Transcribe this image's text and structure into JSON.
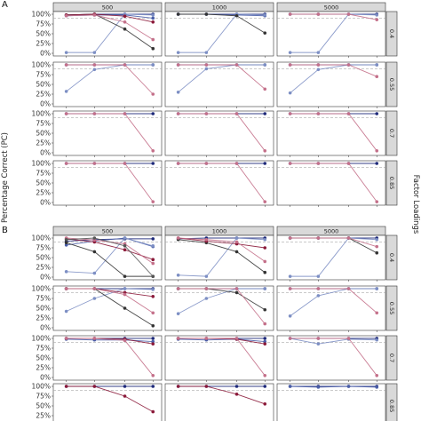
{
  "figure": {
    "y_axis_title": "Percentage Correct (PC)",
    "right_axis_title": "Factor Loadings",
    "panel_labels": [
      "A",
      "B"
    ]
  },
  "chart_data": {
    "type": "line",
    "facets": {
      "columns": [
        "500",
        "1000",
        "5000"
      ],
      "rows": [
        "0.4",
        "0.55",
        "0.7",
        "0.85"
      ]
    },
    "y_ticks": [
      "0%",
      "25%",
      "50%",
      "75%",
      "100%"
    ],
    "ylim": [
      0,
      100
    ],
    "reference_line": 90,
    "x": [
      1,
      2,
      3,
      4
    ],
    "grid": false,
    "legend": "none",
    "panels": [
      {
        "label": "A",
        "cells": [
          {
            "row": "0.4",
            "col": "500",
            "series": [
              {
                "color": "#1f2a7a",
                "values": [
                  98,
                  100,
                  100,
                  100
                ]
              },
              {
                "color": "#4a5ea8",
                "values": [
                  96,
                  98,
                  98,
                  90
                ]
              },
              {
                "color": "#7d8fc4",
                "values": [
                  2,
                  2,
                  100,
                  98
                ]
              },
              {
                "color": "#333333",
                "values": [
                  98,
                  100,
                  62,
                  12
                ]
              },
              {
                "color": "#8b1a3a",
                "values": [
                  98,
                  100,
                  95,
                  80
                ]
              },
              {
                "color": "#c4708a",
                "values": [
                  96,
                  98,
                  80,
                  35
                ]
              }
            ]
          },
          {
            "row": "0.4",
            "col": "1000",
            "series": [
              {
                "color": "#1f2a7a",
                "values": [
                  100,
                  100,
                  100,
                  100
                ]
              },
              {
                "color": "#4a5ea8",
                "values": [
                  100,
                  100,
                  98,
                  96
                ]
              },
              {
                "color": "#7d8fc4",
                "values": [
                  2,
                  2,
                  100,
                  98
                ]
              },
              {
                "color": "#333333",
                "values": [
                  100,
                  100,
                  96,
                  52
                ]
              }
            ]
          },
          {
            "row": "0.4",
            "col": "5000",
            "series": [
              {
                "color": "#1f2a7a",
                "values": [
                  100,
                  100,
                  100,
                  100
                ]
              },
              {
                "color": "#7d8fc4",
                "values": [
                  2,
                  2,
                  100,
                  98
                ]
              },
              {
                "color": "#c4708a",
                "values": [
                  100,
                  100,
                  100,
                  86
                ]
              }
            ]
          },
          {
            "row": "0.55",
            "col": "500",
            "series": [
              {
                "color": "#1f2a7a",
                "values": [
                  100,
                  100,
                  100,
                  100
                ]
              },
              {
                "color": "#7d8fc4",
                "values": [
                  32,
                  88,
                  100,
                  100
                ]
              },
              {
                "color": "#c4708a",
                "values": [
                  100,
                  100,
                  100,
                  25
                ]
              }
            ]
          },
          {
            "row": "0.55",
            "col": "1000",
            "series": [
              {
                "color": "#1f2a7a",
                "values": [
                  100,
                  100,
                  100,
                  100
                ]
              },
              {
                "color": "#7d8fc4",
                "values": [
                  30,
                  90,
                  100,
                  100
                ]
              },
              {
                "color": "#c4708a",
                "values": [
                  100,
                  100,
                  100,
                  38
                ]
              }
            ]
          },
          {
            "row": "0.55",
            "col": "5000",
            "series": [
              {
                "color": "#1f2a7a",
                "values": [
                  100,
                  100,
                  100,
                  100
                ]
              },
              {
                "color": "#7d8fc4",
                "values": [
                  28,
                  88,
                  100,
                  100
                ]
              },
              {
                "color": "#c4708a",
                "values": [
                  100,
                  100,
                  100,
                  70
                ]
              }
            ]
          },
          {
            "row": "0.7",
            "col": "500",
            "series": [
              {
                "color": "#1f2a7a",
                "values": [
                  100,
                  100,
                  100,
                  100
                ]
              },
              {
                "color": "#c4708a",
                "values": [
                  100,
                  100,
                  100,
                  5
                ]
              }
            ]
          },
          {
            "row": "0.7",
            "col": "1000",
            "series": [
              {
                "color": "#1f2a7a",
                "values": [
                  100,
                  100,
                  100,
                  100
                ]
              },
              {
                "color": "#c4708a",
                "values": [
                  100,
                  100,
                  100,
                  5
                ]
              }
            ]
          },
          {
            "row": "0.7",
            "col": "5000",
            "series": [
              {
                "color": "#1f2a7a",
                "values": [
                  100,
                  100,
                  100,
                  100
                ]
              },
              {
                "color": "#c4708a",
                "values": [
                  100,
                  100,
                  100,
                  5
                ]
              }
            ]
          },
          {
            "row": "0.85",
            "col": "500",
            "series": [
              {
                "color": "#1f2a7a",
                "values": [
                  100,
                  100,
                  100,
                  100
                ]
              },
              {
                "color": "#c4708a",
                "values": [
                  100,
                  100,
                  100,
                  2
                ]
              }
            ]
          },
          {
            "row": "0.85",
            "col": "1000",
            "series": [
              {
                "color": "#1f2a7a",
                "values": [
                  100,
                  100,
                  100,
                  100
                ]
              },
              {
                "color": "#c4708a",
                "values": [
                  100,
                  100,
                  100,
                  2
                ]
              }
            ]
          },
          {
            "row": "0.85",
            "col": "5000",
            "series": [
              {
                "color": "#1f2a7a",
                "values": [
                  100,
                  100,
                  100,
                  100
                ]
              },
              {
                "color": "#c4708a",
                "values": [
                  100,
                  100,
                  100,
                  2
                ]
              }
            ]
          }
        ]
      },
      {
        "label": "B",
        "cells": [
          {
            "row": "0.4",
            "col": "500",
            "series": [
              {
                "color": "#1f2a7a",
                "values": [
                  92,
                  96,
                  98,
                  98
                ]
              },
              {
                "color": "#4a5ea8",
                "values": [
                  82,
                  92,
                  100,
                  78
                ]
              },
              {
                "color": "#7d8fc4",
                "values": [
                  14,
                  10,
                  100,
                  80
                ]
              },
              {
                "color": "#333333",
                "values": [
                  88,
                  65,
                  2,
                  2
                ]
              },
              {
                "color": "#8b1a3a",
                "values": [
                  98,
                  90,
                  70,
                  45
                ]
              },
              {
                "color": "#c4708a",
                "values": [
                  100,
                  95,
                  85,
                  35
                ]
              },
              {
                "color": "#555555",
                "values": [
                  96,
                  100,
                  80,
                  2
                ]
              }
            ]
          },
          {
            "row": "0.4",
            "col": "1000",
            "series": [
              {
                "color": "#1f2a7a",
                "values": [
                  98,
                  100,
                  100,
                  100
                ]
              },
              {
                "color": "#7d8fc4",
                "values": [
                  5,
                  2,
                  100,
                  96
                ]
              },
              {
                "color": "#333333",
                "values": [
                  96,
                  88,
                  65,
                  12
                ]
              },
              {
                "color": "#8b1a3a",
                "values": [
                  100,
                  92,
                  85,
                  75
                ]
              },
              {
                "color": "#c4708a",
                "values": [
                  100,
                  96,
                  90,
                  40
                ]
              }
            ]
          },
          {
            "row": "0.4",
            "col": "5000",
            "series": [
              {
                "color": "#1f2a7a",
                "values": [
                  100,
                  100,
                  100,
                  100
                ]
              },
              {
                "color": "#7d8fc4",
                "values": [
                  2,
                  2,
                  100,
                  96
                ]
              },
              {
                "color": "#333333",
                "values": [
                  100,
                  100,
                  100,
                  62
                ]
              },
              {
                "color": "#c4708a",
                "values": [
                  100,
                  100,
                  100,
                  78
                ]
              }
            ]
          },
          {
            "row": "0.55",
            "col": "500",
            "series": [
              {
                "color": "#1f2a7a",
                "values": [
                  100,
                  100,
                  100,
                  100
                ]
              },
              {
                "color": "#7d8fc4",
                "values": [
                  42,
                  75,
                  100,
                  98
                ]
              },
              {
                "color": "#333333",
                "values": [
                  100,
                  100,
                  50,
                  5
                ]
              },
              {
                "color": "#8b1a3a",
                "values": [
                  100,
                  100,
                  90,
                  80
                ]
              },
              {
                "color": "#c4708a",
                "values": [
                  100,
                  100,
                  85,
                  38
                ]
              }
            ]
          },
          {
            "row": "0.55",
            "col": "1000",
            "series": [
              {
                "color": "#1f2a7a",
                "values": [
                  100,
                  100,
                  100,
                  100
                ]
              },
              {
                "color": "#7d8fc4",
                "values": [
                  36,
                  75,
                  100,
                  100
                ]
              },
              {
                "color": "#333333",
                "values": [
                  100,
                  100,
                  90,
                  46
                ]
              },
              {
                "color": "#c4708a",
                "values": [
                  100,
                  100,
                  100,
                  10
                ]
              }
            ]
          },
          {
            "row": "0.55",
            "col": "5000",
            "series": [
              {
                "color": "#1f2a7a",
                "values": [
                  100,
                  100,
                  100,
                  100
                ]
              },
              {
                "color": "#7d8fc4",
                "values": [
                  30,
                  82,
                  100,
                  100
                ]
              },
              {
                "color": "#c4708a",
                "values": [
                  100,
                  100,
                  100,
                  38
                ]
              }
            ]
          },
          {
            "row": "0.7",
            "col": "500",
            "series": [
              {
                "color": "#1f2a7a",
                "values": [
                  100,
                  100,
                  100,
                  100
                ]
              },
              {
                "color": "#4a5ea8",
                "values": [
                  98,
                  96,
                  96,
                  92
                ]
              },
              {
                "color": "#8b1a3a",
                "values": [
                  100,
                  100,
                  98,
                  86
                ]
              },
              {
                "color": "#c4708a",
                "values": [
                  100,
                  100,
                  95,
                  5
                ]
              }
            ]
          },
          {
            "row": "0.7",
            "col": "1000",
            "series": [
              {
                "color": "#1f2a7a",
                "values": [
                  100,
                  100,
                  100,
                  100
                ]
              },
              {
                "color": "#4a5ea8",
                "values": [
                  98,
                  96,
                  98,
                  92
                ]
              },
              {
                "color": "#8b1a3a",
                "values": [
                  100,
                  100,
                  98,
                  86
                ]
              },
              {
                "color": "#c4708a",
                "values": [
                  100,
                  100,
                  100,
                  5
                ]
              }
            ]
          },
          {
            "row": "0.7",
            "col": "5000",
            "series": [
              {
                "color": "#1f2a7a",
                "values": [
                  100,
                  100,
                  100,
                  100
                ]
              },
              {
                "color": "#7d8fc4",
                "values": [
                  100,
                  86,
                  98,
                  96
                ]
              },
              {
                "color": "#c4708a",
                "values": [
                  100,
                  100,
                  100,
                  5
                ]
              }
            ]
          },
          {
            "row": "0.85",
            "col": "500",
            "series": [
              {
                "color": "#1f2a7a",
                "values": [
                  100,
                  100,
                  100,
                  100
                ]
              },
              {
                "color": "#8b1a3a",
                "values": [
                  100,
                  100,
                  75,
                  35
                ]
              }
            ]
          },
          {
            "row": "0.85",
            "col": "1000",
            "series": [
              {
                "color": "#1f2a7a",
                "values": [
                  100,
                  100,
                  100,
                  100
                ]
              },
              {
                "color": "#8b1a3a",
                "values": [
                  100,
                  100,
                  80,
                  55
                ]
              }
            ]
          },
          {
            "row": "0.85",
            "col": "5000",
            "series": [
              {
                "color": "#1f2a7a",
                "values": [
                  100,
                  100,
                  100,
                  100
                ]
              },
              {
                "color": "#4a5ea8",
                "values": [
                  100,
                  98,
                  100,
                  98
                ]
              }
            ]
          }
        ]
      }
    ]
  }
}
